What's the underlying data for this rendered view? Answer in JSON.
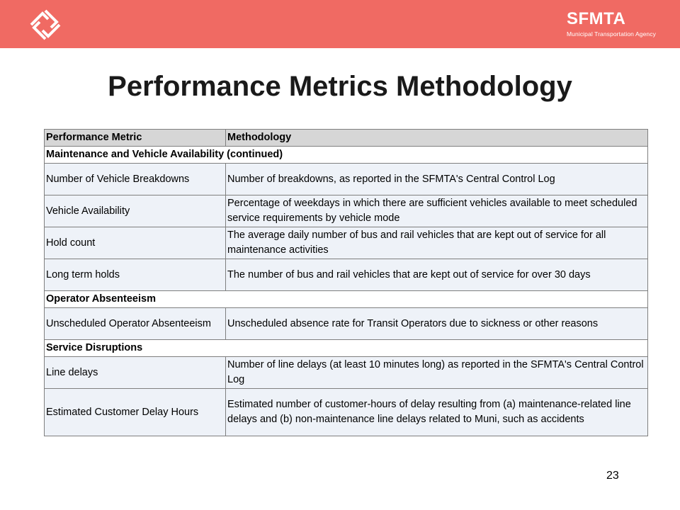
{
  "header": {
    "logo_icon": "sfmta-diamond-logo-icon",
    "brand_name": "SFMTA",
    "brand_subtitle": "Municipal Transportation Agency",
    "banner_color": "#f06a63"
  },
  "title": "Performance Metrics Methodology",
  "table": {
    "columns": [
      "Performance Metric",
      "Methodology"
    ],
    "sections": [
      {
        "heading": "Maintenance and Vehicle Availability (continued)",
        "rows": [
          {
            "metric": "Number of Vehicle Breakdowns",
            "methodology": "Number of breakdowns, as reported in the SFMTA's Central Control Log"
          },
          {
            "metric": "Vehicle Availability",
            "methodology": "Percentage of weekdays in which there are sufficient vehicles available to meet scheduled service requirements by vehicle mode"
          },
          {
            "metric": "Hold count",
            "methodology": "The average daily number of bus and rail vehicles that are kept out of service for all maintenance activities"
          },
          {
            "metric": "Long term holds",
            "methodology": "The number of bus and rail vehicles that are kept out of service for over 30 days"
          }
        ]
      },
      {
        "heading": "Operator Absenteeism",
        "rows": [
          {
            "metric": "Unscheduled Operator Absenteeism",
            "methodology": "Unscheduled absence rate for Transit Operators due to sickness or other reasons"
          }
        ]
      },
      {
        "heading": "Service Disruptions",
        "rows": [
          {
            "metric": "Line delays",
            "methodology": "Number of line delays (at least 10 minutes long) as reported in the SFMTA's Central Control Log"
          },
          {
            "metric": "Estimated Customer Delay Hours",
            "methodology": "Estimated number of customer-hours of delay resulting from (a) maintenance-related line delays and (b) non-maintenance line delays related to Muni, such as accidents"
          }
        ]
      }
    ]
  },
  "page_number": "23"
}
